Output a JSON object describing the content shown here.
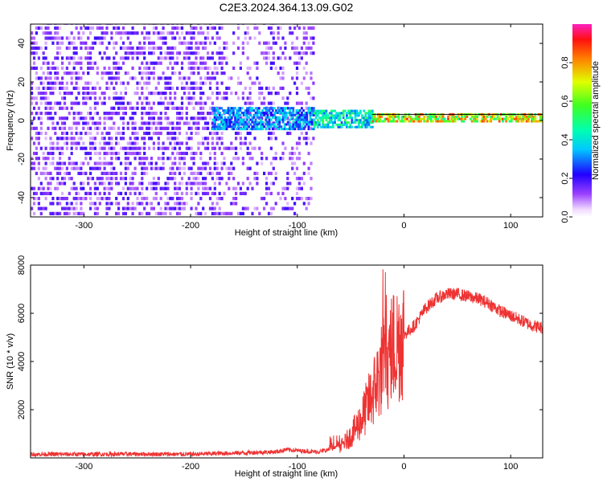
{
  "chart_data": [
    {
      "type": "heatmap",
      "title": "C2E3.2024.364.13.09.G02",
      "xlabel": "Height of straight line (km)",
      "ylabel": "Frequency (Hz)",
      "xlim": [
        -350,
        130
      ],
      "ylim": [
        -50,
        50
      ],
      "xticks": [
        "-300",
        "-200",
        "-100",
        "0",
        "100"
      ],
      "xtick_values": [
        -300,
        -200,
        -100,
        0,
        100
      ],
      "yticks": [
        "40",
        "20",
        "0",
        "-20",
        "-40"
      ],
      "ytick_values": [
        40,
        20,
        0,
        -20,
        -40
      ],
      "colorbar": {
        "label": "Normalized spectral amplitude",
        "ticks": [
          "0.0",
          "0.2",
          "0.4",
          "0.6",
          "0.8"
        ],
        "tick_values": [
          0,
          0.2,
          0.4,
          0.6,
          0.8
        ],
        "range": [
          0,
          1
        ]
      },
      "description_regions": [
        {
          "x_range": [
            -350,
            -85
          ],
          "f_range": [
            -50,
            50
          ],
          "amplitude": 0.15
        },
        {
          "x_range": [
            -180,
            -85
          ],
          "f_range": [
            -5,
            6
          ],
          "amplitude": 0.35
        },
        {
          "x_range": [
            -85,
            -30
          ],
          "f_range": [
            -4,
            5
          ],
          "amplitude": 0.45
        },
        {
          "x_range": [
            -30,
            130
          ],
          "f_range": [
            -1,
            3
          ],
          "amplitude": 0.75
        }
      ]
    },
    {
      "type": "line",
      "xlabel": "Height of straight line (km)",
      "ylabel": "SNR (10 * v/v)",
      "xlim": [
        -350,
        130
      ],
      "ylim": [
        0,
        8000
      ],
      "xticks": [
        "-300",
        "-200",
        "-100",
        "0",
        "100"
      ],
      "xtick_values": [
        -300,
        -200,
        -100,
        0,
        100
      ],
      "yticks": [
        "2000",
        "4000",
        "6000",
        "8000"
      ],
      "ytick_values": [
        2000,
        4000,
        6000,
        8000
      ],
      "series": [
        {
          "color": "#ee3333",
          "x": [
            -350,
            -300,
            -250,
            -200,
            -160,
            -120,
            -110,
            -100,
            -80,
            -60,
            -50,
            -40,
            -30,
            -20,
            -15,
            -10,
            0,
            10,
            20,
            30,
            40,
            50,
            60,
            70,
            80,
            90,
            100,
            110,
            120,
            130
          ],
          "y": [
            150,
            150,
            160,
            150,
            200,
            250,
            350,
            300,
            250,
            450,
            900,
            1600,
            2600,
            3800,
            4200,
            4600,
            5100,
            5500,
            6200,
            6600,
            6800,
            6800,
            6700,
            6600,
            6400,
            6100,
            5900,
            5700,
            5500,
            5400
          ]
        }
      ]
    }
  ]
}
